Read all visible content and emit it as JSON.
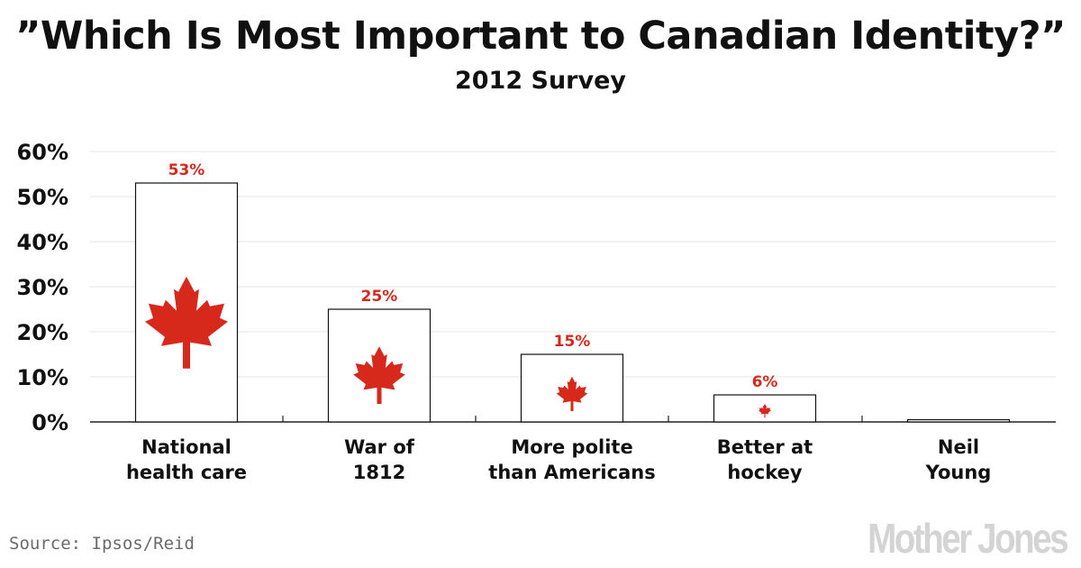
{
  "header": {
    "title": "”Which Is Most Important to Canadian Identity?”",
    "subtitle": "2012 Survey"
  },
  "chart_data": {
    "type": "bar",
    "title": "”Which Is Most Important to Canadian Identity?”",
    "subtitle": "2012 Survey",
    "categories": [
      [
        "National",
        "health care"
      ],
      [
        "War of",
        "1812"
      ],
      [
        "More polite",
        "than Americans"
      ],
      [
        "Better at",
        "hockey"
      ],
      [
        "Neil",
        "Young"
      ]
    ],
    "values": [
      53,
      25,
      15,
      6,
      0.5
    ],
    "data_labels": [
      "53%",
      "25%",
      "15%",
      "6%",
      ""
    ],
    "ylim": [
      0,
      60
    ],
    "yticks": [
      0,
      10,
      20,
      30,
      40,
      50,
      60
    ],
    "ytick_labels": [
      "0%",
      "10%",
      "20%",
      "30%",
      "40%",
      "50%",
      "60%"
    ],
    "xlabel": "",
    "ylabel": "",
    "grid": true,
    "colors": {
      "label": "#d42a1e",
      "leaf": "#d7281c",
      "bar_edge": "#111111",
      "grid": "#e4e4e4"
    },
    "icon": "maple-leaf-icon"
  },
  "footer": {
    "source": "Source: Ipsos/Reid",
    "logo": "Mother Jones"
  }
}
